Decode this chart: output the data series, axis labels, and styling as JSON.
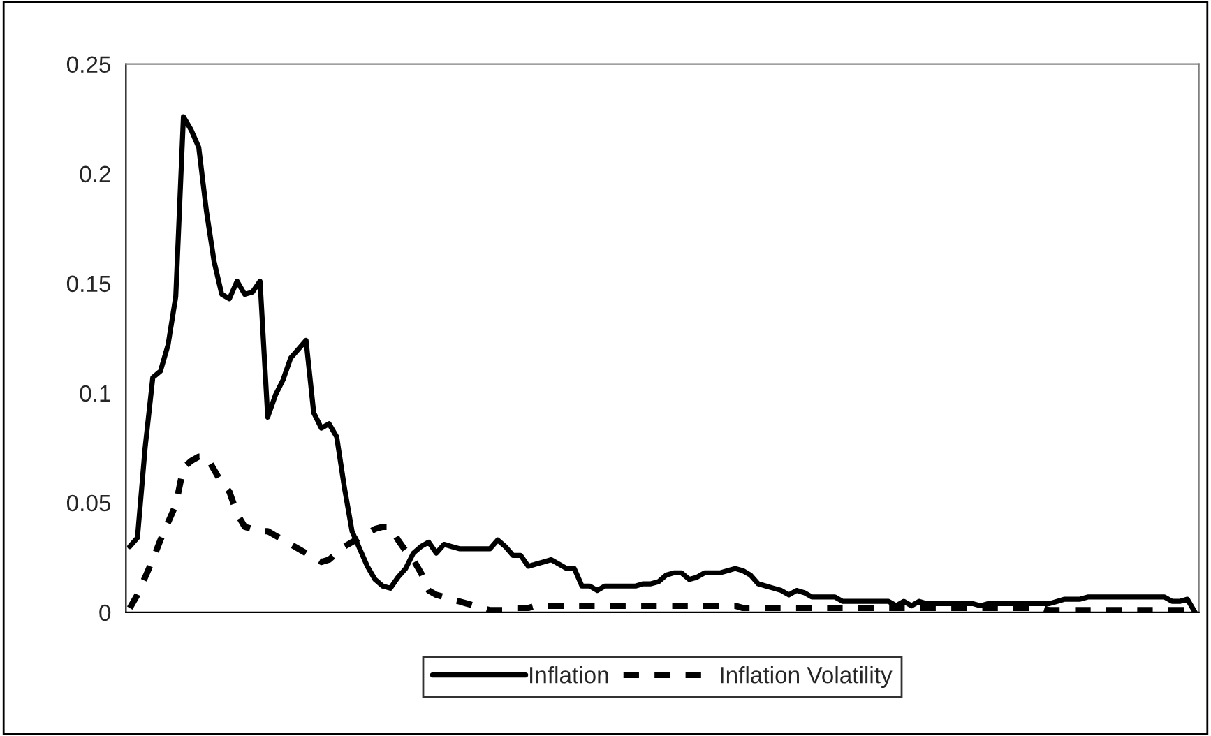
{
  "chart_data": {
    "type": "line",
    "categories": [
      null,
      null,
      null,
      null,
      null,
      null,
      null,
      null,
      null,
      null,
      null,
      null,
      null,
      null,
      null,
      null,
      null,
      null,
      null,
      null,
      null,
      null,
      null,
      null,
      null,
      null,
      null,
      null,
      null,
      null,
      null,
      null,
      null,
      null,
      null,
      null,
      null,
      null,
      null,
      null,
      null,
      null,
      null,
      null,
      null,
      null,
      null,
      null,
      null,
      null,
      null,
      null,
      null,
      null,
      null,
      null,
      null,
      null,
      null,
      null,
      null,
      null,
      null,
      null,
      null,
      null,
      null,
      null,
      null,
      null,
      null,
      null,
      null,
      null,
      null,
      null,
      null,
      null,
      null,
      null,
      null,
      null,
      null,
      null,
      null,
      null,
      null,
      null,
      null,
      null,
      null,
      null,
      null,
      null,
      null,
      null,
      null,
      null,
      null,
      null,
      null,
      null,
      null,
      null,
      null,
      null,
      null,
      null,
      null,
      null,
      null,
      null,
      null,
      null,
      null,
      null,
      null,
      null,
      null,
      null,
      null,
      null,
      null,
      null,
      null,
      null,
      null,
      null,
      null,
      null,
      null,
      null,
      null,
      null,
      null,
      null,
      null,
      null,
      null,
      null
    ],
    "series": [
      {
        "name": "Inflation",
        "color": "#000000",
        "line_style": "solid",
        "values": [
          0.03,
          0.034,
          0.075,
          0.107,
          0.11,
          0.122,
          0.144,
          0.226,
          0.22,
          0.212,
          0.183,
          0.16,
          0.145,
          0.143,
          0.151,
          0.145,
          0.146,
          0.151,
          0.089,
          0.099,
          0.106,
          0.116,
          0.12,
          0.124,
          0.091,
          0.084,
          0.086,
          0.08,
          0.057,
          0.037,
          0.029,
          0.021,
          0.015,
          0.012,
          0.011,
          0.016,
          0.02,
          0.027,
          0.03,
          0.032,
          0.027,
          0.031,
          0.03,
          0.029,
          0.029,
          0.029,
          0.029,
          0.029,
          0.033,
          0.03,
          0.026,
          0.026,
          0.021,
          0.022,
          0.023,
          0.024,
          0.022,
          0.02,
          0.02,
          0.012,
          0.012,
          0.01,
          0.012,
          0.012,
          0.012,
          0.012,
          0.012,
          0.013,
          0.013,
          0.014,
          0.017,
          0.018,
          0.018,
          0.015,
          0.016,
          0.018,
          0.018,
          0.018,
          0.019,
          0.02,
          0.019,
          0.017,
          0.013,
          0.012,
          0.011,
          0.01,
          0.008,
          0.01,
          0.009,
          0.007,
          0.007,
          0.007,
          0.007,
          0.005,
          0.005,
          0.005,
          0.005,
          0.005,
          0.005,
          0.005,
          0.003,
          0.005,
          0.003,
          0.005,
          0.004,
          0.004,
          0.004,
          0.004,
          0.004,
          0.004,
          0.004,
          0.003,
          0.004,
          0.004,
          0.004,
          0.004,
          0.004,
          0.004,
          0.004,
          0.004,
          0.004,
          0.005,
          0.006,
          0.006,
          0.006,
          0.007,
          0.007,
          0.007,
          0.007,
          0.007,
          0.007,
          0.007,
          0.007,
          0.007,
          0.007,
          0.007,
          0.005,
          0.005,
          0.006,
          0.0
        ]
      },
      {
        "name": "Inflation Volatility",
        "color": "#000000",
        "line_style": "dashed",
        "values": [
          0.002,
          0.008,
          0.016,
          0.024,
          0.033,
          0.041,
          0.049,
          0.066,
          0.069,
          0.071,
          0.071,
          0.065,
          0.059,
          0.055,
          0.045,
          0.039,
          0.038,
          0.037,
          0.037,
          0.035,
          0.033,
          0.031,
          0.029,
          0.027,
          0.025,
          0.023,
          0.024,
          0.027,
          0.03,
          0.032,
          0.034,
          0.036,
          0.038,
          0.039,
          0.039,
          0.033,
          0.028,
          0.024,
          0.018,
          0.01,
          0.008,
          0.007,
          0.006,
          0.005,
          0.004,
          0.003,
          0.002,
          0.001,
          0.001,
          0.001,
          0.002,
          0.002,
          0.002,
          0.003,
          0.003,
          0.003,
          0.003,
          0.003,
          0.003,
          0.003,
          0.003,
          0.003,
          0.003,
          0.003,
          0.003,
          0.003,
          0.003,
          0.003,
          0.003,
          0.003,
          0.003,
          0.003,
          0.003,
          0.003,
          0.003,
          0.003,
          0.003,
          0.003,
          0.003,
          0.003,
          0.002,
          0.002,
          0.002,
          0.002,
          0.002,
          0.002,
          0.002,
          0.002,
          0.002,
          0.002,
          0.002,
          0.002,
          0.002,
          0.002,
          0.002,
          0.002,
          0.002,
          0.002,
          0.002,
          0.002,
          0.002,
          0.002,
          0.002,
          0.002,
          0.002,
          0.002,
          0.002,
          0.002,
          0.002,
          0.002,
          0.002,
          0.002,
          0.002,
          0.002,
          0.002,
          0.002,
          0.002,
          0.002,
          0.002,
          0.002,
          0.001,
          0.001,
          0.001,
          0.001,
          0.001,
          0.001,
          0.001,
          0.001,
          0.001,
          0.001,
          0.001,
          0.001,
          0.001,
          0.001,
          0.001,
          0.001,
          0.001,
          0.001,
          0.001,
          0.001
        ]
      }
    ],
    "ylim": [
      0,
      0.25
    ],
    "yticks": [
      0,
      0.05,
      0.1,
      0.15,
      0.2,
      0.25
    ],
    "tick_labels": "y",
    "grid": false,
    "legend": "bottom",
    "marker": "none"
  }
}
